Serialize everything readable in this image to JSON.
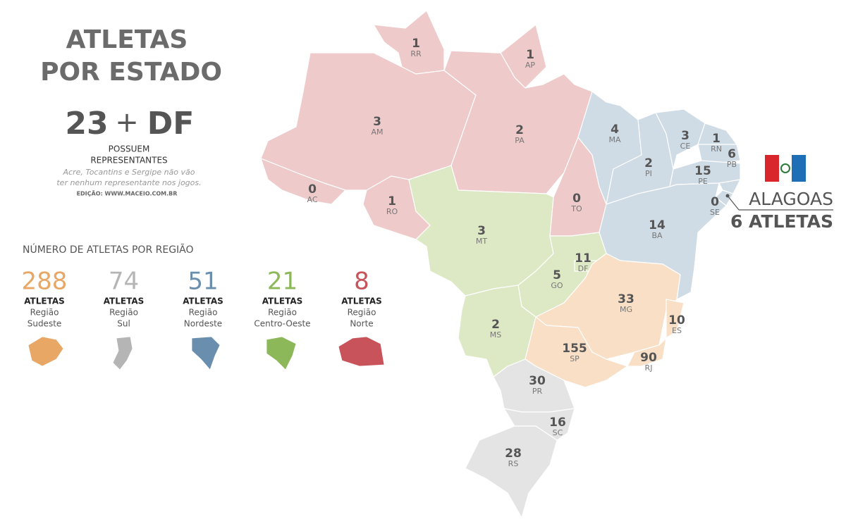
{
  "title_lines": [
    "ATLETAS",
    "POR ESTADO"
  ],
  "summary": {
    "count": "23",
    "plus": "+",
    "extra": "DF",
    "label_lines": [
      "POSSUEM",
      "REPRESENTANTES"
    ],
    "note_lines": [
      "Acre, Tocantins e Sergipe não vão",
      "ter nenhum representante nos jogos."
    ],
    "credit": "EDIÇÃO: WWW.MACEIO.COM.BR"
  },
  "regions_heading": "NÚMERO DE ATLETAS POR REGIÃO",
  "regions": [
    {
      "total": 288,
      "unit": "ATLETAS",
      "label_lines": [
        "Região",
        "Sudeste"
      ],
      "color": "#e8a765"
    },
    {
      "total": 74,
      "unit": "ATLETAS",
      "label_lines": [
        "Região",
        "Sul"
      ],
      "color": "#b5b5b5"
    },
    {
      "total": 51,
      "unit": "ATLETAS",
      "label_lines": [
        "Região",
        "Nordeste"
      ],
      "color": "#6a8fae"
    },
    {
      "total": 21,
      "unit": "ATLETAS",
      "label_lines": [
        "Região",
        "Centro-Oeste"
      ],
      "color": "#8db85a"
    },
    {
      "total": 8,
      "unit": "ATLETAS",
      "label_lines": [
        "Região",
        "Norte"
      ],
      "color": "#c9535a"
    }
  ],
  "states": [
    {
      "count": 1,
      "abbr": "RR"
    },
    {
      "count": 1,
      "abbr": "AP"
    },
    {
      "count": 3,
      "abbr": "AM"
    },
    {
      "count": 2,
      "abbr": "PA"
    },
    {
      "count": 0,
      "abbr": "AC"
    },
    {
      "count": 1,
      "abbr": "RO"
    },
    {
      "count": 0,
      "abbr": "TO"
    },
    {
      "count": 4,
      "abbr": "MA"
    },
    {
      "count": 2,
      "abbr": "PI"
    },
    {
      "count": 3,
      "abbr": "CE"
    },
    {
      "count": 1,
      "abbr": "RN"
    },
    {
      "count": 6,
      "abbr": "PB"
    },
    {
      "count": 15,
      "abbr": "PE"
    },
    {
      "count": 0,
      "abbr": "SE"
    },
    {
      "count": 14,
      "abbr": "BA"
    },
    {
      "count": 3,
      "abbr": "MT"
    },
    {
      "count": 11,
      "abbr": "DF"
    },
    {
      "count": 5,
      "abbr": "GO"
    },
    {
      "count": 2,
      "abbr": "MS"
    },
    {
      "count": 33,
      "abbr": "MG"
    },
    {
      "count": 10,
      "abbr": "ES"
    },
    {
      "count": 155,
      "abbr": "SP"
    },
    {
      "count": 90,
      "abbr": "RJ"
    },
    {
      "count": 30,
      "abbr": "PR"
    },
    {
      "count": 16,
      "abbr": "SC"
    },
    {
      "count": 28,
      "abbr": "RS"
    }
  ],
  "highlight": {
    "name": "ALAGOAS",
    "count_label": "6 ATLETAS"
  }
}
